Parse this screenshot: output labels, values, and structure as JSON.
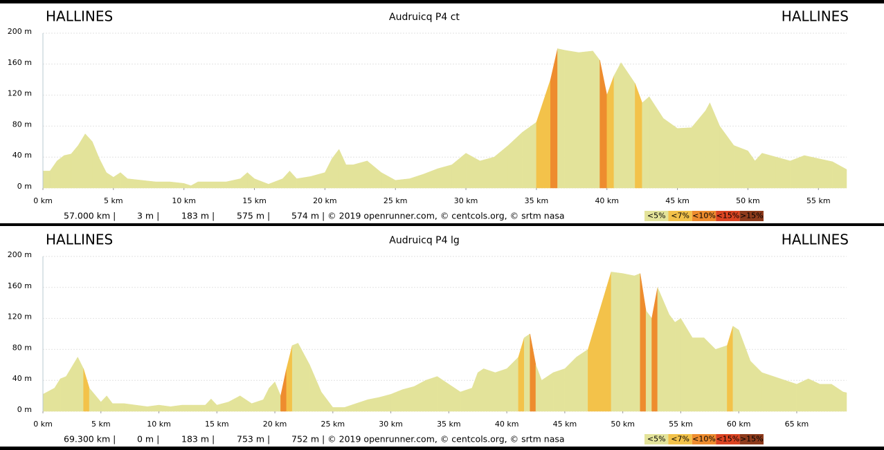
{
  "chart_data": [
    {
      "type": "area",
      "title": "Audruicq P4 ct",
      "start_label": "HALLINES",
      "end_label": "HALLINES",
      "x": [
        0,
        0.5,
        1,
        1.5,
        2,
        2.5,
        3,
        3.5,
        4,
        4.5,
        5,
        5.5,
        6,
        7,
        8,
        9,
        10,
        10.5,
        11,
        12,
        13,
        14,
        14.5,
        15,
        16,
        17,
        17.5,
        18,
        19,
        20,
        20.5,
        21,
        21.5,
        22,
        23,
        24,
        25,
        26,
        27,
        28,
        29,
        30,
        31,
        32,
        33,
        34,
        35,
        36,
        36.5,
        37,
        38,
        39,
        39.5,
        40,
        40.5,
        41,
        42,
        42.5,
        43,
        44,
        45,
        46,
        47,
        47.3,
        48,
        49,
        50,
        50.5,
        51,
        52,
        53,
        54,
        55,
        56,
        57
      ],
      "values": [
        22,
        22,
        35,
        42,
        44,
        55,
        70,
        60,
        38,
        20,
        14,
        20,
        12,
        10,
        8,
        8,
        6,
        3,
        8,
        8,
        8,
        12,
        20,
        12,
        5,
        12,
        22,
        12,
        15,
        20,
        38,
        50,
        30,
        30,
        35,
        20,
        10,
        12,
        18,
        25,
        30,
        45,
        35,
        40,
        55,
        72,
        85,
        140,
        180,
        178,
        175,
        177,
        165,
        120,
        145,
        162,
        135,
        110,
        118,
        90,
        77,
        78,
        100,
        110,
        80,
        55,
        48,
        35,
        45,
        40,
        35,
        42,
        38,
        34,
        24
      ],
      "xlim": [
        0,
        57
      ],
      "xticks": [
        {
          "value": 0,
          "label": "0 km"
        },
        {
          "value": 5,
          "label": "5 km"
        },
        {
          "value": 10,
          "label": "10 km"
        },
        {
          "value": 15,
          "label": "15 km"
        },
        {
          "value": 20,
          "label": "20 km"
        },
        {
          "value": 25,
          "label": "25 km"
        },
        {
          "value": 30,
          "label": "30 km"
        },
        {
          "value": 35,
          "label": "35 km"
        },
        {
          "value": 40,
          "label": "40 km"
        },
        {
          "value": 45,
          "label": "45 km"
        },
        {
          "value": 50,
          "label": "50 km"
        },
        {
          "value": 55,
          "label": "55 km"
        }
      ],
      "ylim": [
        0,
        200
      ],
      "yticks": [
        {
          "value": 0,
          "label": "0 m"
        },
        {
          "value": 40,
          "label": "40 m"
        },
        {
          "value": 80,
          "label": "80 m"
        },
        {
          "value": 120,
          "label": "120 m"
        },
        {
          "value": 160,
          "label": "160 m"
        },
        {
          "value": 200,
          "label": "200 m"
        }
      ],
      "grid": true,
      "footer": [
        "57.000 km |",
        "3 m |",
        "183 m |",
        "575 m |",
        "574 m | © 2019 openrunner.com, © centcols.org, © srtm nasa"
      ],
      "gradient_classes": [
        {
          "value": 5,
          "label": "<5%",
          "color": "#e3e39a"
        },
        {
          "value": 7,
          "label": "<7%",
          "color": "#f3c24a"
        },
        {
          "value": 10,
          "label": "<10%",
          "color": "#ee8c2e"
        },
        {
          "value": 15,
          "label": "<15%",
          "color": "#db4422"
        },
        {
          "value": 15,
          "label": ">15%",
          "color": "#8e3b1c"
        }
      ]
    },
    {
      "type": "area",
      "title": "Audruicq P4 lg",
      "start_label": "HALLINES",
      "end_label": "HALLINES",
      "x": [
        0,
        1,
        1.5,
        2,
        3,
        3.5,
        4,
        5,
        5.5,
        6,
        7,
        8,
        9,
        10,
        11,
        12,
        13,
        14,
        14.5,
        15,
        16,
        17,
        18,
        19,
        19.5,
        20,
        20.5,
        21,
        21.5,
        22,
        23,
        24,
        25,
        26,
        27,
        28,
        29,
        30,
        31,
        32,
        33,
        34,
        35,
        36,
        37,
        37.5,
        38,
        39,
        40,
        41,
        41.5,
        42,
        42.5,
        43,
        44,
        45,
        46,
        47,
        48,
        49,
        50,
        51,
        51.5,
        52,
        52.5,
        53,
        54,
        54.5,
        55,
        56,
        57,
        58,
        59,
        59.5,
        60,
        61,
        62,
        63,
        64,
        65,
        66,
        67,
        68,
        69,
        69.3
      ],
      "values": [
        22,
        30,
        42,
        45,
        70,
        55,
        30,
        12,
        20,
        10,
        10,
        8,
        6,
        8,
        6,
        8,
        8,
        8,
        16,
        8,
        12,
        20,
        10,
        15,
        30,
        38,
        20,
        55,
        85,
        88,
        60,
        25,
        5,
        5,
        10,
        15,
        18,
        22,
        28,
        32,
        40,
        45,
        35,
        25,
        30,
        50,
        55,
        50,
        55,
        70,
        95,
        100,
        60,
        40,
        50,
        55,
        70,
        80,
        130,
        180,
        178,
        175,
        178,
        130,
        120,
        160,
        125,
        115,
        120,
        95,
        95,
        80,
        85,
        110,
        105,
        65,
        50,
        45,
        40,
        35,
        42,
        35,
        35,
        25,
        24
      ],
      "xlim": [
        0,
        69.3
      ],
      "xticks": [
        {
          "value": 0,
          "label": "0 km"
        },
        {
          "value": 5,
          "label": "5 km"
        },
        {
          "value": 10,
          "label": "10 km"
        },
        {
          "value": 15,
          "label": "15 km"
        },
        {
          "value": 20,
          "label": "20 km"
        },
        {
          "value": 25,
          "label": "25 km"
        },
        {
          "value": 30,
          "label": "30 km"
        },
        {
          "value": 35,
          "label": "35 km"
        },
        {
          "value": 40,
          "label": "40 km"
        },
        {
          "value": 45,
          "label": "45 km"
        },
        {
          "value": 50,
          "label": "50 km"
        },
        {
          "value": 55,
          "label": "55 km"
        },
        {
          "value": 60,
          "label": "60 km"
        },
        {
          "value": 65,
          "label": "65 km"
        }
      ],
      "ylim": [
        0,
        200
      ],
      "yticks": [
        {
          "value": 0,
          "label": "0 m"
        },
        {
          "value": 40,
          "label": "40 m"
        },
        {
          "value": 80,
          "label": "80 m"
        },
        {
          "value": 120,
          "label": "120 m"
        },
        {
          "value": 160,
          "label": "160 m"
        },
        {
          "value": 200,
          "label": "200 m"
        }
      ],
      "grid": true,
      "footer": [
        "69.300 km |",
        "0 m |",
        "183 m |",
        "753 m |",
        "752 m | © 2019 openrunner.com, © centcols.org, © srtm nasa"
      ],
      "gradient_classes": [
        {
          "value": 5,
          "label": "<5%",
          "color": "#e3e39a"
        },
        {
          "value": 7,
          "label": "<7%",
          "color": "#f3c24a"
        },
        {
          "value": 10,
          "label": "<10%",
          "color": "#ee8c2e"
        },
        {
          "value": 15,
          "label": "<15%",
          "color": "#db4422"
        },
        {
          "value": 15,
          "label": ">15%",
          "color": "#8e3b1c"
        }
      ]
    }
  ]
}
